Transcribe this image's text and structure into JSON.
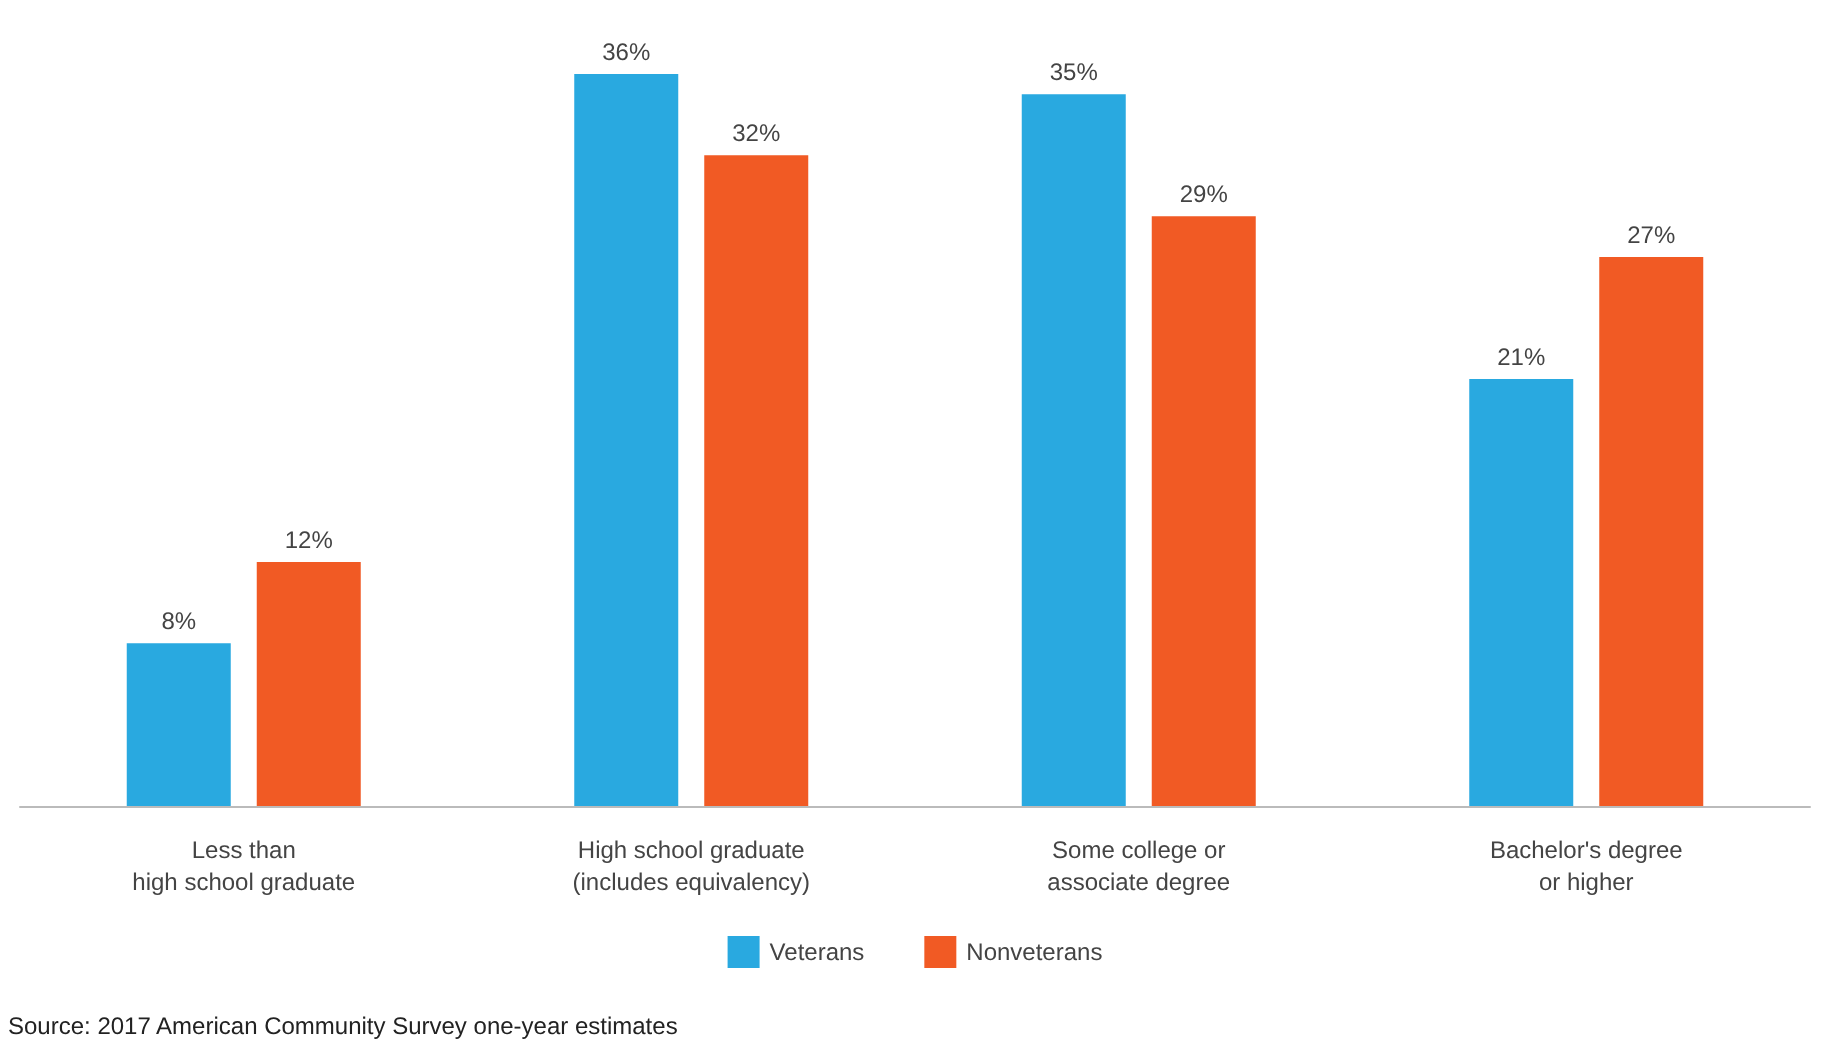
{
  "chart_data": {
    "type": "bar",
    "categories": [
      "Less than\nhigh school graduate",
      "High school graduate\n(includes equivalency)",
      "Some college or\nassociate degree",
      "Bachelor's degree\nor higher"
    ],
    "series": [
      {
        "name": "Veterans",
        "color": "#29a9e0",
        "values": [
          8,
          36,
          35,
          21
        ],
        "value_labels": [
          "8%",
          "36%",
          "35%",
          "21%"
        ]
      },
      {
        "name": "Nonveterans",
        "color": "#f15a24",
        "values": [
          12,
          32,
          29,
          27
        ],
        "value_labels": [
          "12%",
          "32%",
          "29%",
          "27%"
        ]
      }
    ],
    "legend": "bottom",
    "annotations": [
      "Source: 2017 American Community Survey one-year estimates"
    ]
  }
}
